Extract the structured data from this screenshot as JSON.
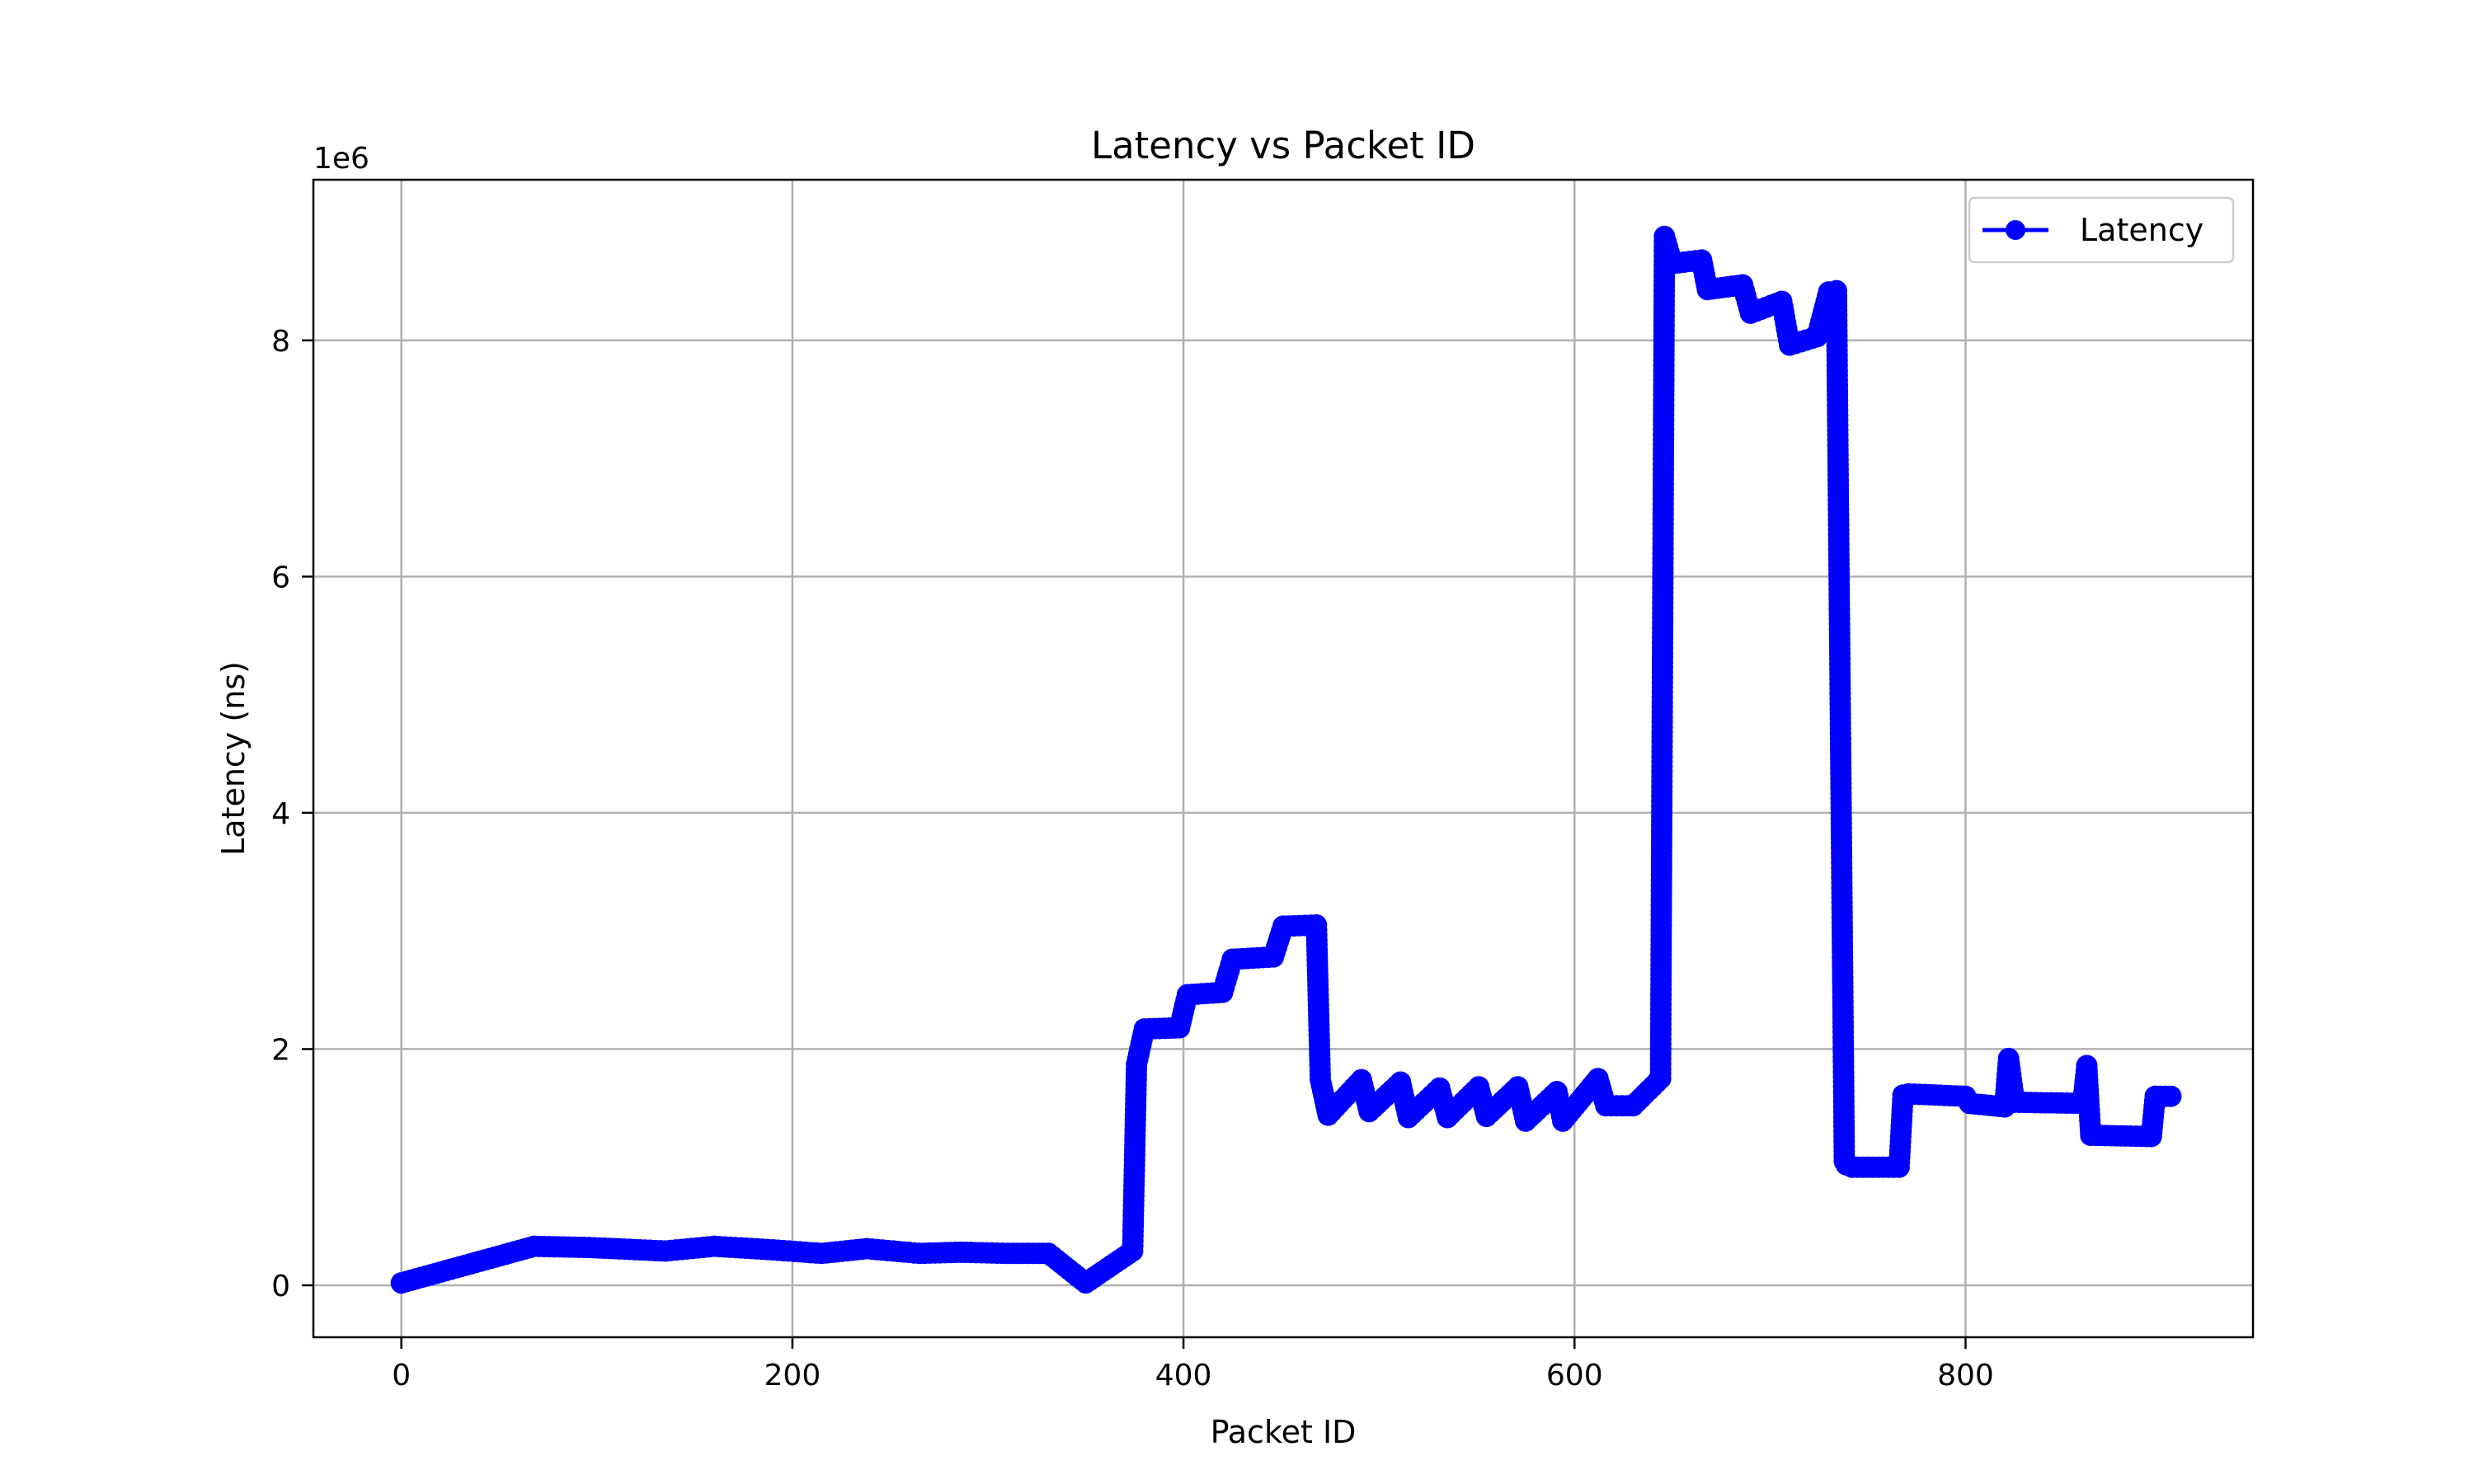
{
  "chart_data": {
    "type": "line",
    "title": "Latency vs Packet ID",
    "xlabel": "Packet ID",
    "ylabel": "Latency (ns)",
    "y_offset_label": "1e6",
    "xlim": [
      -45,
      947
    ],
    "ylim": [
      -0.44,
      9.36
    ],
    "y_scale_factor": 1000000,
    "xticks": [
      0,
      200,
      400,
      600,
      800
    ],
    "yticks": [
      0,
      2,
      4,
      6,
      8
    ],
    "grid": true,
    "legend_position": "top-right",
    "line_color": "#0000ff",
    "marker": "circle",
    "series": [
      {
        "name": "Latency",
        "x": [
          0,
          68,
          96,
          135,
          160,
          190,
          215,
          238,
          265,
          286,
          310,
          331,
          350,
          374,
          376,
          380,
          398,
          402,
          420,
          425,
          446,
          451,
          468,
          470,
          474,
          491,
          495,
          511,
          515,
          531,
          535,
          551,
          555,
          571,
          575,
          591,
          594,
          612,
          616,
          630,
          644,
          646,
          650,
          665,
          668,
          686,
          690,
          706,
          710,
          724,
          730,
          734,
          738,
          739,
          742,
          766,
          768,
          771,
          800,
          802,
          820,
          822,
          825,
          860,
          862,
          864,
          895,
          897,
          905
        ],
        "y": [
          0.02,
          0.33,
          0.32,
          0.29,
          0.33,
          0.3,
          0.27,
          0.31,
          0.27,
          0.28,
          0.27,
          0.27,
          0.02,
          0.29,
          1.87,
          2.17,
          2.18,
          2.46,
          2.48,
          2.76,
          2.78,
          3.04,
          3.05,
          1.74,
          1.44,
          1.74,
          1.47,
          1.72,
          1.42,
          1.67,
          1.42,
          1.68,
          1.43,
          1.68,
          1.39,
          1.64,
          1.39,
          1.75,
          1.52,
          1.52,
          1.75,
          8.88,
          8.65,
          8.68,
          8.43,
          8.47,
          8.23,
          8.33,
          7.96,
          8.03,
          8.41,
          8.42,
          1.05,
          1.02,
          1.0,
          1.0,
          1.61,
          1.62,
          1.6,
          1.54,
          1.51,
          1.92,
          1.55,
          1.54,
          1.86,
          1.27,
          1.26,
          1.6,
          1.6
        ]
      }
    ]
  }
}
